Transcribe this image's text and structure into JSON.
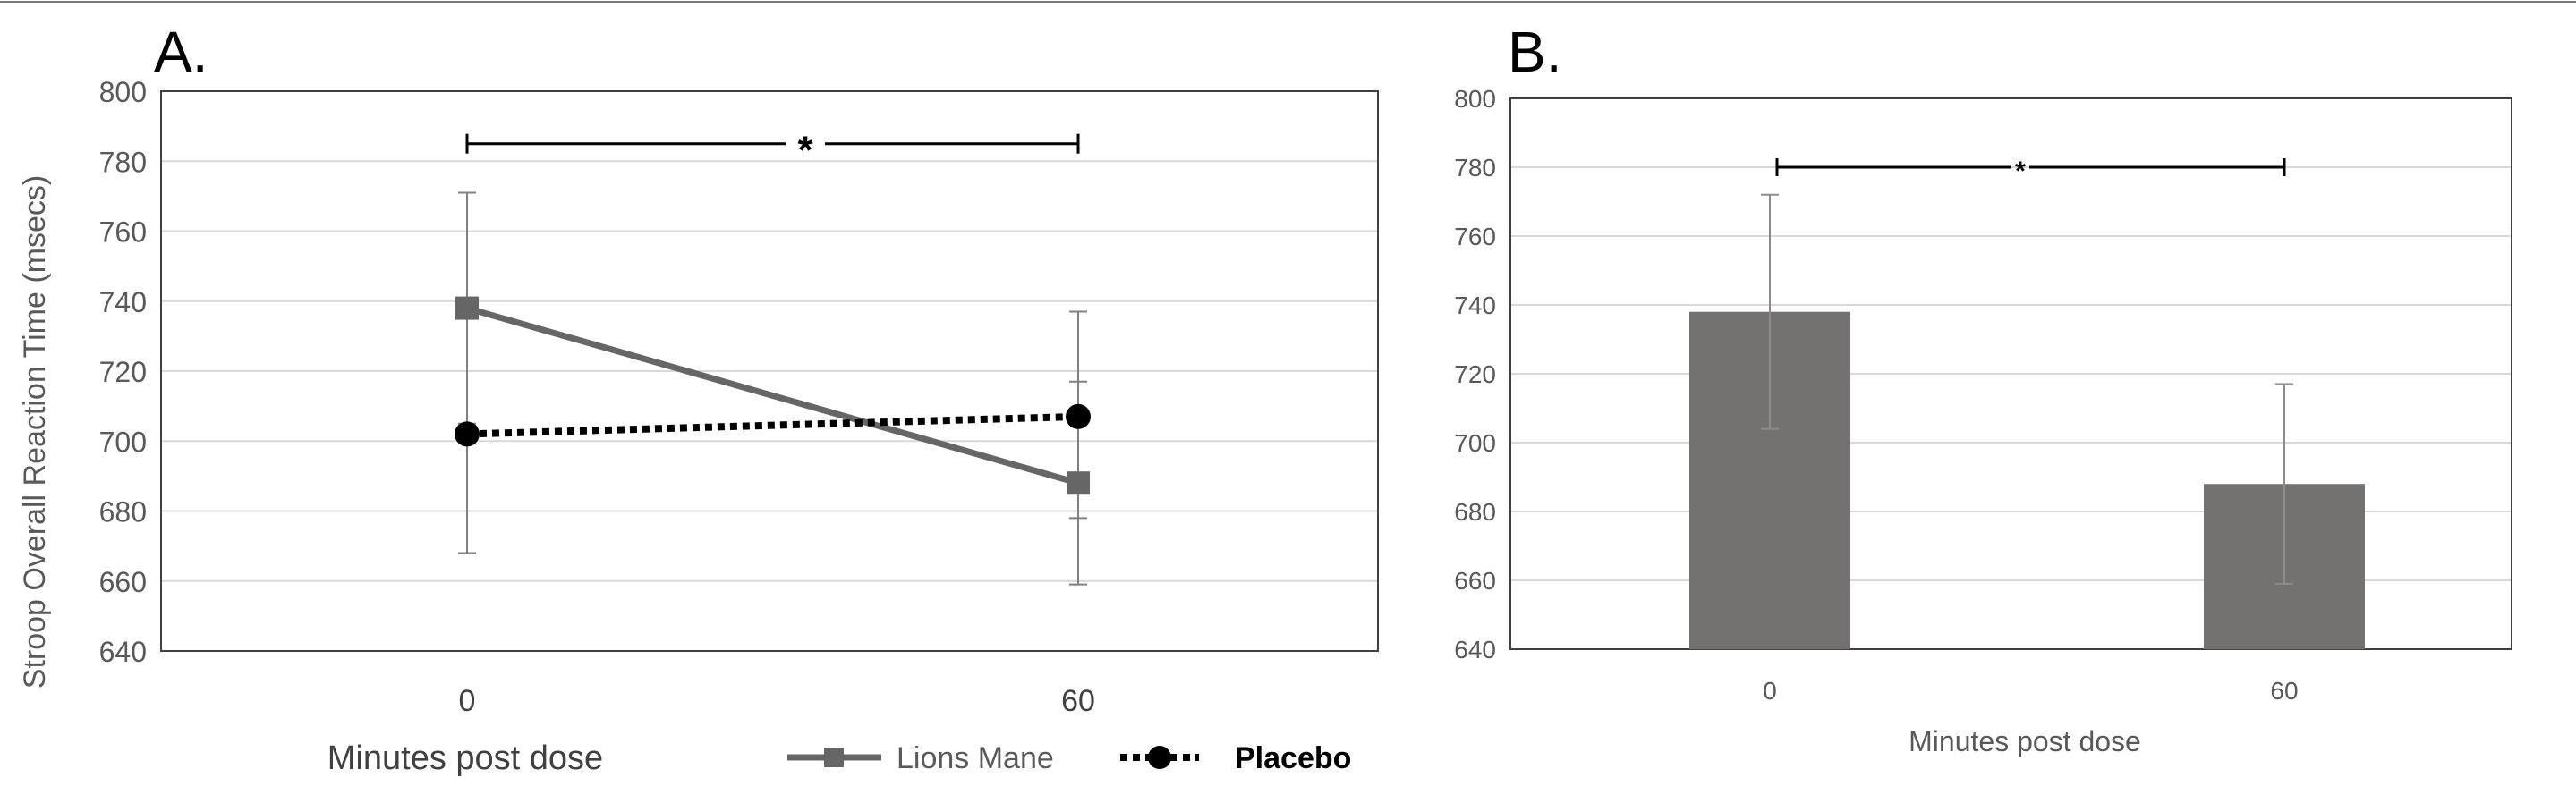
{
  "chart_data": [
    {
      "type": "line",
      "panel_label": "A.",
      "xlabel": "Minutes post dose",
      "ylabel": "Stroop Overall Reaction Time (msecs)",
      "categories": [
        "0",
        "60"
      ],
      "ylim": [
        640,
        800
      ],
      "yticks": [
        "640",
        "660",
        "680",
        "700",
        "720",
        "740",
        "760",
        "780",
        "800"
      ],
      "grid": true,
      "legend_position": "bottom-right",
      "series": [
        {
          "name": "Lions Mane",
          "values": [
            738,
            688
          ],
          "error_upper": [
            771,
            717
          ],
          "error_lower": [
            705,
            659
          ],
          "color": "#666666",
          "marker": "square",
          "line": "solid"
        },
        {
          "name": "Placebo",
          "values": [
            702,
            707
          ],
          "error_upper": [
            737,
            737
          ],
          "error_lower": [
            668,
            678
          ],
          "color": "#000000",
          "marker": "circle",
          "line": "dotted"
        }
      ],
      "annotations": [
        {
          "text": "*",
          "from": "0",
          "to": "60",
          "y": 785
        }
      ]
    },
    {
      "type": "bar",
      "panel_label": "B.",
      "xlabel": "Minutes post dose",
      "ylabel": "",
      "categories": [
        "0",
        "60"
      ],
      "values": [
        738,
        688
      ],
      "error_upper": [
        772,
        717
      ],
      "error_lower": [
        704,
        659
      ],
      "ylim": [
        640,
        800
      ],
      "yticks": [
        "640",
        "660",
        "680",
        "700",
        "720",
        "740",
        "760",
        "780",
        "800"
      ],
      "grid": true,
      "color": "#767171",
      "annotations": [
        {
          "text": "*",
          "from": "0",
          "to": "60",
          "y": 780
        }
      ]
    }
  ]
}
